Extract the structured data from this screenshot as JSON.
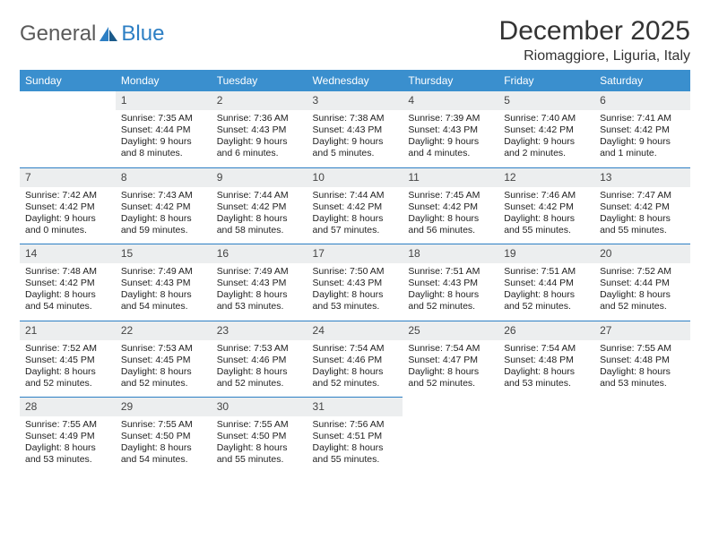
{
  "logo": {
    "text1": "General",
    "text2": "Blue"
  },
  "title": "December 2025",
  "location": "Riomaggiore, Liguria, Italy",
  "colors": {
    "header_bg": "#3a8fce",
    "header_text": "#ffffff",
    "daynum_bg": "#eceeef",
    "row_border": "#2d7fc4",
    "text": "#222222",
    "logo_gray": "#5a5a5a",
    "logo_blue": "#2d7fc4"
  },
  "weekdays": [
    "Sunday",
    "Monday",
    "Tuesday",
    "Wednesday",
    "Thursday",
    "Friday",
    "Saturday"
  ],
  "start_offset": 1,
  "days": [
    {
      "n": 1,
      "sunrise": "7:35 AM",
      "sunset": "4:44 PM",
      "dh": 9,
      "dm": 8
    },
    {
      "n": 2,
      "sunrise": "7:36 AM",
      "sunset": "4:43 PM",
      "dh": 9,
      "dm": 6
    },
    {
      "n": 3,
      "sunrise": "7:38 AM",
      "sunset": "4:43 PM",
      "dh": 9,
      "dm": 5
    },
    {
      "n": 4,
      "sunrise": "7:39 AM",
      "sunset": "4:43 PM",
      "dh": 9,
      "dm": 4
    },
    {
      "n": 5,
      "sunrise": "7:40 AM",
      "sunset": "4:42 PM",
      "dh": 9,
      "dm": 2
    },
    {
      "n": 6,
      "sunrise": "7:41 AM",
      "sunset": "4:42 PM",
      "dh": 9,
      "dm": 1
    },
    {
      "n": 7,
      "sunrise": "7:42 AM",
      "sunset": "4:42 PM",
      "dh": 9,
      "dm": 0
    },
    {
      "n": 8,
      "sunrise": "7:43 AM",
      "sunset": "4:42 PM",
      "dh": 8,
      "dm": 59
    },
    {
      "n": 9,
      "sunrise": "7:44 AM",
      "sunset": "4:42 PM",
      "dh": 8,
      "dm": 58
    },
    {
      "n": 10,
      "sunrise": "7:44 AM",
      "sunset": "4:42 PM",
      "dh": 8,
      "dm": 57
    },
    {
      "n": 11,
      "sunrise": "7:45 AM",
      "sunset": "4:42 PM",
      "dh": 8,
      "dm": 56
    },
    {
      "n": 12,
      "sunrise": "7:46 AM",
      "sunset": "4:42 PM",
      "dh": 8,
      "dm": 55
    },
    {
      "n": 13,
      "sunrise": "7:47 AM",
      "sunset": "4:42 PM",
      "dh": 8,
      "dm": 55
    },
    {
      "n": 14,
      "sunrise": "7:48 AM",
      "sunset": "4:42 PM",
      "dh": 8,
      "dm": 54
    },
    {
      "n": 15,
      "sunrise": "7:49 AM",
      "sunset": "4:43 PM",
      "dh": 8,
      "dm": 54
    },
    {
      "n": 16,
      "sunrise": "7:49 AM",
      "sunset": "4:43 PM",
      "dh": 8,
      "dm": 53
    },
    {
      "n": 17,
      "sunrise": "7:50 AM",
      "sunset": "4:43 PM",
      "dh": 8,
      "dm": 53
    },
    {
      "n": 18,
      "sunrise": "7:51 AM",
      "sunset": "4:43 PM",
      "dh": 8,
      "dm": 52
    },
    {
      "n": 19,
      "sunrise": "7:51 AM",
      "sunset": "4:44 PM",
      "dh": 8,
      "dm": 52
    },
    {
      "n": 20,
      "sunrise": "7:52 AM",
      "sunset": "4:44 PM",
      "dh": 8,
      "dm": 52
    },
    {
      "n": 21,
      "sunrise": "7:52 AM",
      "sunset": "4:45 PM",
      "dh": 8,
      "dm": 52
    },
    {
      "n": 22,
      "sunrise": "7:53 AM",
      "sunset": "4:45 PM",
      "dh": 8,
      "dm": 52
    },
    {
      "n": 23,
      "sunrise": "7:53 AM",
      "sunset": "4:46 PM",
      "dh": 8,
      "dm": 52
    },
    {
      "n": 24,
      "sunrise": "7:54 AM",
      "sunset": "4:46 PM",
      "dh": 8,
      "dm": 52
    },
    {
      "n": 25,
      "sunrise": "7:54 AM",
      "sunset": "4:47 PM",
      "dh": 8,
      "dm": 52
    },
    {
      "n": 26,
      "sunrise": "7:54 AM",
      "sunset": "4:48 PM",
      "dh": 8,
      "dm": 53
    },
    {
      "n": 27,
      "sunrise": "7:55 AM",
      "sunset": "4:48 PM",
      "dh": 8,
      "dm": 53
    },
    {
      "n": 28,
      "sunrise": "7:55 AM",
      "sunset": "4:49 PM",
      "dh": 8,
      "dm": 53
    },
    {
      "n": 29,
      "sunrise": "7:55 AM",
      "sunset": "4:50 PM",
      "dh": 8,
      "dm": 54
    },
    {
      "n": 30,
      "sunrise": "7:55 AM",
      "sunset": "4:50 PM",
      "dh": 8,
      "dm": 55
    },
    {
      "n": 31,
      "sunrise": "7:56 AM",
      "sunset": "4:51 PM",
      "dh": 8,
      "dm": 55
    }
  ],
  "labels": {
    "sunrise": "Sunrise:",
    "sunset": "Sunset:",
    "daylight": "Daylight:",
    "hours": "hours",
    "and": "and",
    "minutes": "minutes.",
    "minute": "minute."
  }
}
